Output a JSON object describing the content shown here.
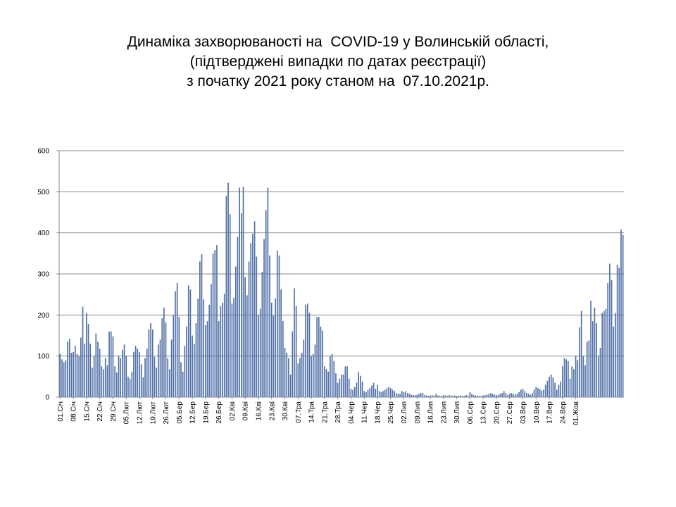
{
  "title_lines": [
    "Динаміка захворюваності на  COVID-19 у Волинській області,",
    "(підтверджені випадки по датах реєстрації)",
    "з початку 2021 року станом на  07.10.2021р."
  ],
  "chart_data": {
    "type": "bar",
    "title": "Динаміка захворюваності на  COVID-19 у Волинській області, (підтверджені випадки по датах реєстрації) з початку 2021 року станом на  07.10.2021р.",
    "xlabel": "",
    "ylabel": "",
    "ylim": [
      0,
      600
    ],
    "yticks": [
      0,
      100,
      200,
      300,
      400,
      500,
      600
    ],
    "grid": true,
    "legend": "none",
    "bar_color": "#4f6fa8",
    "x_tick_labels": [
      "01.Січ",
      "08.Січ",
      "15.Січ",
      "22.Січ",
      "29.Січ",
      "05.Лют",
      "12.Лют",
      "19.Лют",
      "26.Лют",
      "05.Бер",
      "12.Бер",
      "19.Бер",
      "26.Бер",
      "02.Кві",
      "09.Кві",
      "16.Кві",
      "23.Кві",
      "30.Кві",
      "07.Тра",
      "14.Тра",
      "21.Тра",
      "28.Тра",
      "04.Чер",
      "11.Чер",
      "18.Чер",
      "25.Чер",
      "02.Лип",
      "09.Лип",
      "16.Лип",
      "23.Лип",
      "30.Лип",
      "06.Сер",
      "13.Сер",
      "20.Сер",
      "27.Сер",
      "03.Вер",
      "10.Вер",
      "17.Вер",
      "24.Вер",
      "01.Жов"
    ],
    "x_start": "01.01.2021",
    "x_end": "07.10.2021",
    "values": [
      105,
      92,
      85,
      90,
      135,
      142,
      108,
      110,
      125,
      105,
      100,
      145,
      220,
      130,
      205,
      178,
      130,
      72,
      100,
      155,
      135,
      118,
      75,
      68,
      95,
      78,
      160,
      160,
      148,
      75,
      60,
      100,
      95,
      115,
      128,
      100,
      50,
      45,
      62,
      110,
      125,
      118,
      110,
      80,
      48,
      95,
      118,
      165,
      180,
      165,
      98,
      72,
      128,
      140,
      192,
      218,
      182,
      95,
      68,
      140,
      200,
      258,
      278,
      195,
      85,
      62,
      125,
      172,
      272,
      262,
      150,
      130,
      180,
      240,
      330,
      348,
      238,
      175,
      185,
      225,
      275,
      350,
      358,
      370,
      185,
      222,
      230,
      252,
      490,
      522,
      445,
      228,
      242,
      318,
      390,
      510,
      448,
      512,
      292,
      248,
      330,
      375,
      398,
      428,
      342,
      200,
      215,
      305,
      385,
      455,
      510,
      345,
      230,
      198,
      240,
      357,
      345,
      262,
      185,
      120,
      108,
      95,
      55,
      160,
      265,
      222,
      82,
      95,
      108,
      140,
      225,
      228,
      205,
      100,
      105,
      128,
      195,
      195,
      172,
      162,
      75,
      68,
      62,
      100,
      105,
      88,
      58,
      35,
      45,
      55,
      55,
      75,
      75,
      45,
      20,
      18,
      25,
      35,
      62,
      52,
      38,
      15,
      12,
      18,
      22,
      28,
      35,
      20,
      30,
      15,
      12,
      15,
      18,
      22,
      25,
      22,
      18,
      15,
      10,
      8,
      8,
      15,
      12,
      14,
      10,
      8,
      6,
      5,
      5,
      6,
      8,
      10,
      10,
      5,
      4,
      3,
      4,
      5,
      3,
      8,
      4,
      3,
      3,
      5,
      4,
      3,
      5,
      4,
      3,
      4,
      3,
      3,
      4,
      3,
      3,
      5,
      3,
      12,
      8,
      5,
      4,
      4,
      3,
      3,
      4,
      5,
      6,
      8,
      10,
      8,
      6,
      5,
      5,
      8,
      10,
      15,
      10,
      5,
      8,
      10,
      8,
      6,
      8,
      12,
      18,
      20,
      15,
      10,
      8,
      6,
      10,
      18,
      25,
      22,
      20,
      16,
      18,
      30,
      40,
      50,
      55,
      48,
      35,
      18,
      30,
      38,
      75,
      95,
      92,
      88,
      45,
      75,
      68,
      100,
      90,
      170,
      210,
      100,
      78,
      135,
      138,
      235,
      185,
      218,
      180,
      100,
      120,
      205,
      210,
      215,
      278,
      325,
      285,
      172,
      205,
      322,
      315,
      408,
      395
    ]
  }
}
